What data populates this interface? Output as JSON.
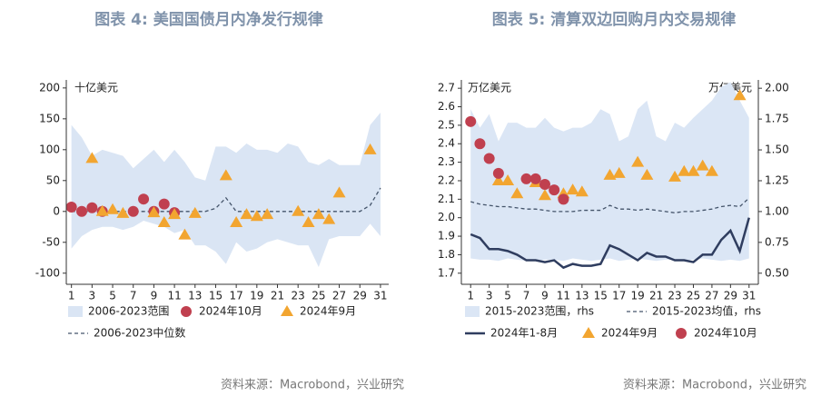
{
  "chart_data": [
    {
      "type": "line",
      "title": "图表 4:  美国国债月内净发行规律",
      "unit": "十亿美元",
      "source": "资料来源：Macrobond，兴业研究",
      "x": [
        1,
        2,
        3,
        4,
        5,
        6,
        7,
        8,
        9,
        10,
        11,
        12,
        13,
        14,
        15,
        16,
        17,
        18,
        19,
        20,
        21,
        22,
        23,
        24,
        25,
        26,
        27,
        28,
        29,
        30,
        31
      ],
      "xlim": [
        0.5,
        31.8
      ],
      "xticks": [
        1,
        3,
        5,
        7,
        9,
        11,
        13,
        15,
        17,
        19,
        21,
        23,
        25,
        27,
        29,
        31
      ],
      "ylim": [
        -118,
        213
      ],
      "yticks": [
        -100,
        -50,
        0,
        50,
        100,
        150,
        200
      ],
      "series": [
        {
          "name": "2006-2023范围",
          "type": "band",
          "color": "#dae5f4",
          "upper": [
            140,
            120,
            90,
            100,
            95,
            90,
            70,
            85,
            100,
            80,
            100,
            80,
            55,
            50,
            105,
            105,
            95,
            110,
            100,
            100,
            95,
            110,
            105,
            80,
            75,
            85,
            75,
            75,
            75,
            140,
            160
          ],
          "lower": [
            -60,
            -40,
            -30,
            -25,
            -25,
            -30,
            -25,
            -15,
            -20,
            -25,
            -35,
            -30,
            -55,
            -55,
            -65,
            -85,
            -50,
            -65,
            -60,
            -50,
            -45,
            -50,
            -55,
            -55,
            -90,
            -45,
            -40,
            -40,
            -40,
            -20,
            -40
          ]
        },
        {
          "name": "2024年10月",
          "type": "scatter",
          "marker": "circle",
          "color": "#c0404f",
          "x": [
            1,
            2,
            3,
            4,
            7,
            8,
            9,
            10,
            11
          ],
          "values": [
            7,
            0,
            6,
            0,
            0,
            20,
            0,
            12,
            -2
          ]
        },
        {
          "name": "2024年9月",
          "type": "scatter",
          "marker": "triangle",
          "color": "#f2a530",
          "x": [
            3,
            4,
            5,
            6,
            9,
            10,
            11,
            12,
            13,
            16,
            17,
            18,
            19,
            20,
            23,
            24,
            25,
            26,
            27,
            30
          ],
          "values": [
            86,
            0,
            3,
            -3,
            -2,
            -18,
            -5,
            -38,
            -3,
            58,
            -18,
            -5,
            -8,
            -5,
            0,
            -18,
            -5,
            -13,
            30,
            100
          ]
        },
        {
          "name": "2006-2023中位数",
          "type": "line",
          "dashed": true,
          "color": "#44546a",
          "values": [
            0,
            0,
            0,
            0,
            0,
            0,
            0,
            0,
            0,
            0,
            0,
            0,
            0,
            0,
            5,
            22,
            0,
            0,
            0,
            0,
            0,
            0,
            0,
            0,
            0,
            0,
            0,
            0,
            0,
            10,
            38
          ]
        }
      ]
    },
    {
      "type": "line",
      "title": "图表 5:  清算双边回购月内交易规律",
      "unit": "万亿美元",
      "unit_right": "万亿美元",
      "source": "资料来源：Macrobond，兴业研究",
      "x": [
        1,
        2,
        3,
        4,
        5,
        6,
        7,
        8,
        9,
        10,
        11,
        12,
        13,
        14,
        15,
        16,
        17,
        18,
        19,
        20,
        21,
        22,
        23,
        24,
        25,
        26,
        27,
        28,
        29,
        30,
        31
      ],
      "xlim": [
        0,
        32
      ],
      "xticks": [
        1,
        3,
        5,
        7,
        9,
        11,
        13,
        15,
        17,
        19,
        21,
        23,
        25,
        27,
        29,
        31
      ],
      "ylim": [
        1.64,
        2.745
      ],
      "yticks": [
        1.7,
        1.8,
        1.9,
        {
          "value": 2,
          "label": "2.0"
        },
        2.1,
        2.2,
        2.3,
        2.4,
        2.5,
        2.6,
        2.7
      ],
      "y2lim": [
        0.41,
        2.0675
      ],
      "y2ticks": [
        {
          "value": 0.5,
          "label": "0.50"
        },
        0.75,
        {
          "value": 1,
          "label": "1.00"
        },
        1.25,
        {
          "value": 1.5,
          "label": "1.50"
        },
        1.75,
        {
          "value": 2,
          "label": "2.00"
        }
      ],
      "series": [
        {
          "name": "2015-2023范围，rhs",
          "type": "band",
          "axis": "y2",
          "color": "#dbe6f5",
          "upper": [
            1.83,
            1.68,
            1.79,
            1.57,
            1.72,
            1.72,
            1.68,
            1.68,
            1.76,
            1.68,
            1.65,
            1.68,
            1.68,
            1.72,
            1.83,
            1.79,
            1.57,
            1.61,
            1.83,
            1.9,
            1.61,
            1.57,
            1.72,
            1.68,
            1.76,
            1.83,
            1.9,
            2.01,
            2.05,
            1.9,
            1.76
          ],
          "lower": [
            0.62,
            0.61,
            0.61,
            0.6,
            0.62,
            0.61,
            0.6,
            0.6,
            0.61,
            0.61,
            0.6,
            0.62,
            0.61,
            0.6,
            0.61,
            0.62,
            0.6,
            0.61,
            0.62,
            0.61,
            0.6,
            0.61,
            0.61,
            0.6,
            0.61,
            0.62,
            0.61,
            0.6,
            0.61,
            0.6,
            0.62
          ]
        },
        {
          "name": "2015-2023均值，rhs",
          "type": "line",
          "axis": "y2",
          "dashed": true,
          "color": "#44546a",
          "values": [
            1.08,
            1.06,
            1.05,
            1.04,
            1.04,
            1.03,
            1.02,
            1.02,
            1.01,
            1.0,
            1.0,
            1.0,
            1.01,
            1.01,
            1.01,
            1.05,
            1.02,
            1.02,
            1.01,
            1.02,
            1.01,
            1.0,
            0.99,
            1.0,
            1.0,
            1.01,
            1.02,
            1.04,
            1.05,
            1.04,
            1.11
          ]
        },
        {
          "name": "2024年1-8月",
          "type": "line",
          "color": "#2f3d5f",
          "values": [
            1.91,
            1.89,
            1.83,
            1.83,
            1.82,
            1.8,
            1.77,
            1.77,
            1.76,
            1.77,
            1.73,
            1.75,
            1.74,
            1.74,
            1.75,
            1.85,
            1.83,
            1.8,
            1.77,
            1.81,
            1.79,
            1.79,
            1.77,
            1.77,
            1.76,
            1.8,
            1.8,
            1.88,
            1.93,
            1.82,
            2.0
          ]
        },
        {
          "name": "2024年9月",
          "type": "scatter",
          "marker": "triangle",
          "color": "#f2a530",
          "x": [
            4,
            5,
            6,
            8,
            9,
            11,
            12,
            13,
            16,
            17,
            19,
            20,
            23,
            24,
            25,
            26,
            27,
            30
          ],
          "values": [
            2.2,
            2.2,
            2.13,
            2.19,
            2.12,
            2.13,
            2.15,
            2.14,
            2.23,
            2.24,
            2.3,
            2.23,
            2.22,
            2.25,
            2.25,
            2.28,
            2.25,
            2.66
          ]
        },
        {
          "name": "2024年10月",
          "type": "scatter",
          "marker": "circle",
          "color": "#c0404f",
          "x": [
            1,
            2,
            3,
            4,
            7,
            8,
            9,
            10,
            11
          ],
          "values": [
            2.52,
            2.4,
            2.32,
            2.24,
            2.21,
            2.21,
            2.18,
            2.15,
            2.1
          ]
        }
      ]
    }
  ]
}
